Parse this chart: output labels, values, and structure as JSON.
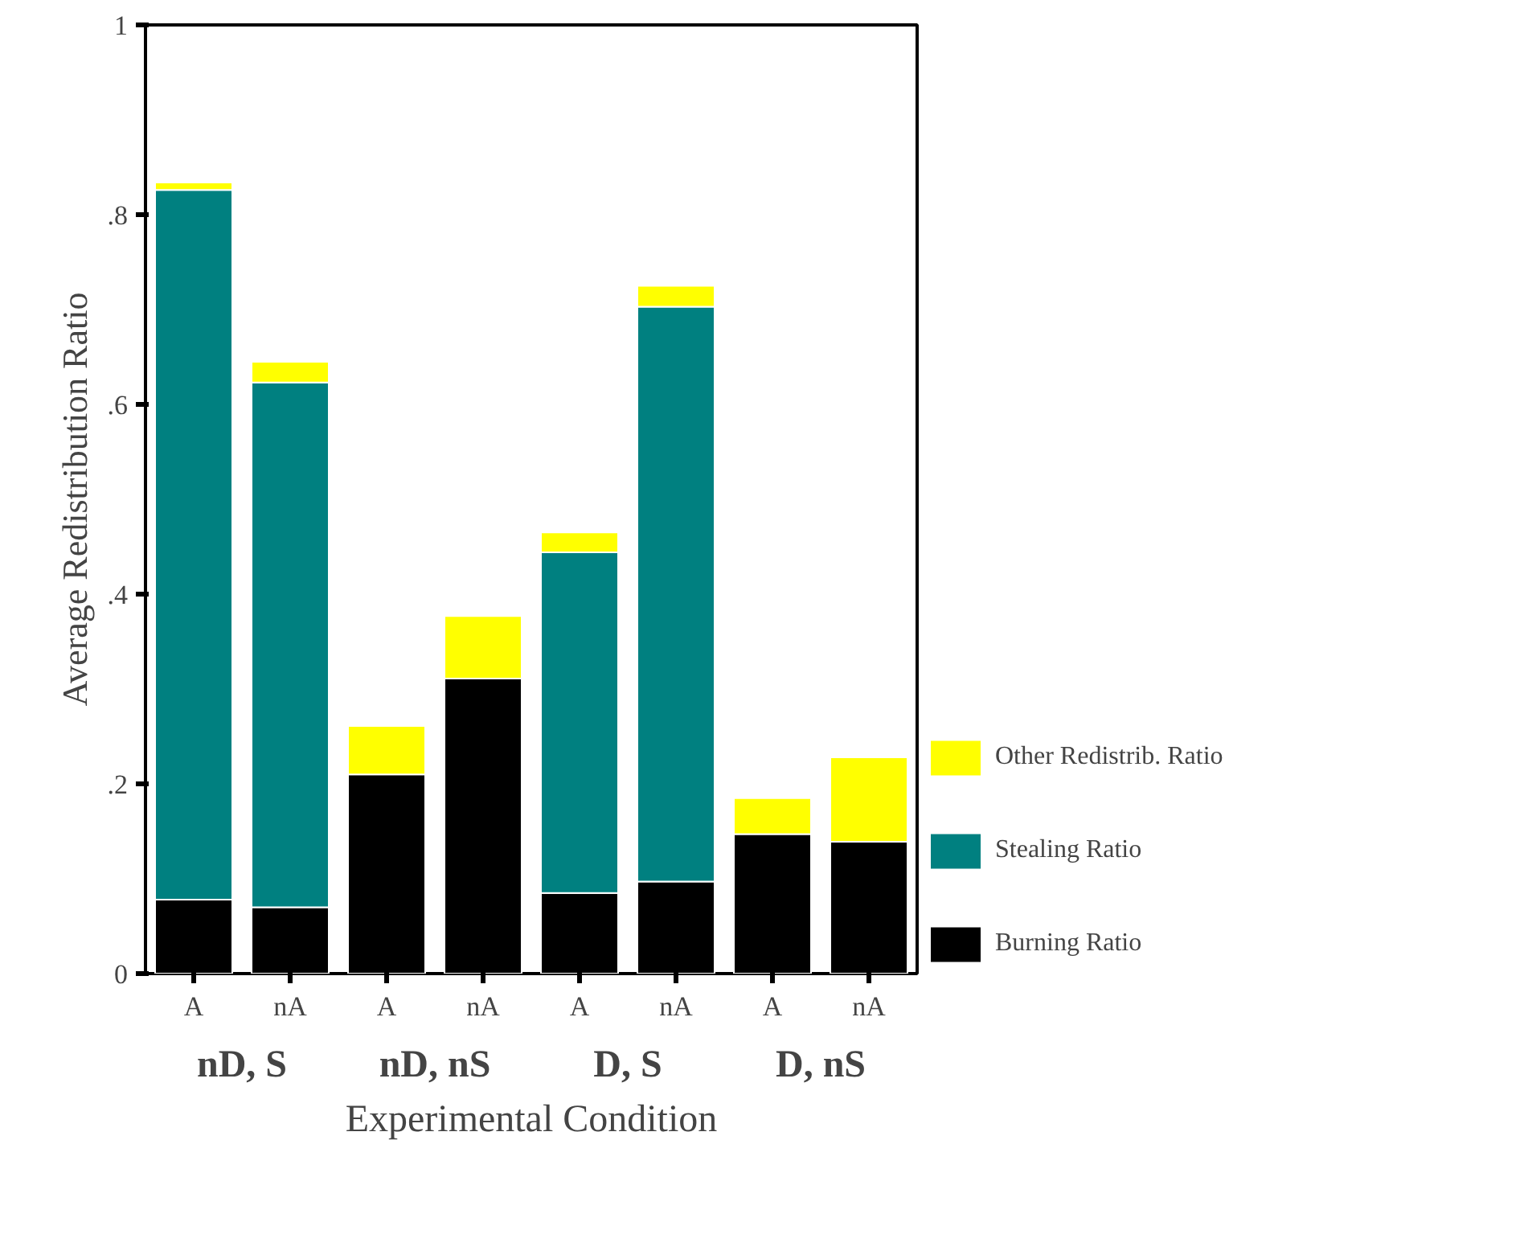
{
  "chart_data": {
    "type": "bar",
    "stacked": true,
    "ylabel": "Average Redistribution Ratio",
    "xlabel": "Experimental Condition",
    "categories": [
      "A",
      "nA",
      "A",
      "nA",
      "A",
      "nA",
      "A",
      "nA"
    ],
    "series": [
      {
        "name": "Burning Ratio",
        "color": "#000000",
        "values": [
          0.078,
          0.07,
          0.21,
          0.311,
          0.085,
          0.097,
          0.147,
          0.139
        ]
      },
      {
        "name": "Stealing Ratio",
        "color": "#008080",
        "values": [
          0.748,
          0.553,
          0,
          0,
          0.359,
          0.606,
          0,
          0
        ]
      },
      {
        "name": "Other Redistrib. Ratio",
        "color": "#ffff00",
        "values": [
          0.008,
          0.022,
          0.051,
          0.066,
          0.021,
          0.022,
          0.038,
          0.089
        ]
      }
    ],
    "annotations": [
      "nD, S",
      "nD, nS",
      "D, S",
      "D, nS"
    ],
    "ylim": [
      0,
      1
    ],
    "yticks": [
      {
        "value": 0,
        "label": "0"
      },
      {
        "value": 0.2,
        "label": ".2"
      },
      {
        "value": 0.4,
        "label": ".4"
      },
      {
        "value": 0.6,
        "label": ".6"
      },
      {
        "value": 0.8,
        "label": ".8"
      },
      {
        "value": 1,
        "label": "1"
      }
    ],
    "grid": false,
    "legend": "right"
  }
}
